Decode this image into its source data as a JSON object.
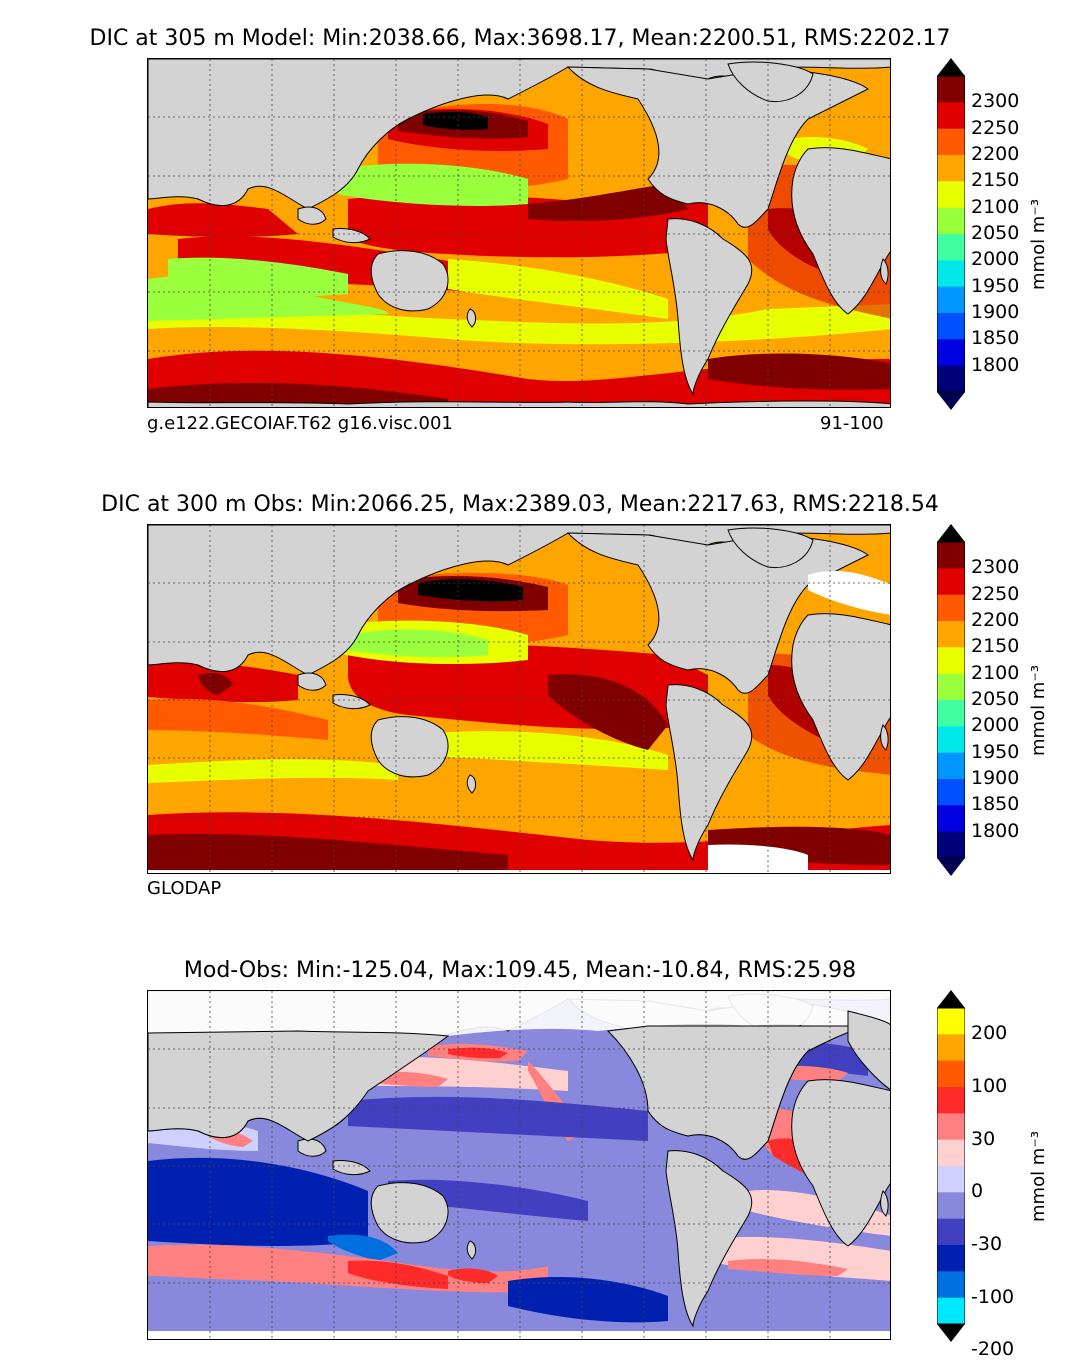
{
  "panels": [
    {
      "title": "DIC at 305 m Model: Min:2038.66, Max:3698.17, Mean:2200.51, RMS:2202.17",
      "caption_left": "g.e122.GECOIAF.T62 g16.visc.001",
      "caption_right": "91-100",
      "units": "mmol m⁻³"
    },
    {
      "title": "DIC at 300 m Obs: Min:2066.25, Max:2389.03, Mean:2217.63, RMS:2218.54",
      "caption_left": "GLODAP",
      "caption_right": "",
      "units": "mmol m⁻³"
    },
    {
      "title": "Mod-Obs: Min:-125.04, Max:109.45, Mean:-10.84, RMS:25.98",
      "caption_left": "",
      "caption_right": "",
      "units": "mmol m⁻³"
    }
  ],
  "colorbars": {
    "dic": {
      "labels": [
        "2300",
        "2250",
        "2200",
        "2150",
        "2100",
        "2050",
        "2000",
        "1950",
        "1900",
        "1850",
        "1800"
      ],
      "colors_top_to_bottom": [
        "#800000",
        "#e00000",
        "#ff5a00",
        "#ffa500",
        "#e8ff00",
        "#9aff3c",
        "#40ffa0",
        "#00e8e8",
        "#0096ff",
        "#0050ff",
        "#0000e0",
        "#00007a"
      ],
      "over_color": "#000000",
      "under_color": "#000050"
    },
    "diff": {
      "labels": [
        "200",
        "100",
        "30",
        "0",
        "-30",
        "-100",
        "-200"
      ],
      "colors_top_to_bottom": [
        "#ffff00",
        "#ffa500",
        "#ff5a00",
        "#ff2a2a",
        "#ff8080",
        "#ffd0d0",
        "#d0d0ff",
        "#8888dd",
        "#4040c0",
        "#0020b0",
        "#0070e0",
        "#00e8ff"
      ],
      "over_color": "#000000",
      "under_color": "#000000"
    }
  },
  "map_colors": {
    "land": "#d3d3d3",
    "ice": "#ffffff"
  }
}
